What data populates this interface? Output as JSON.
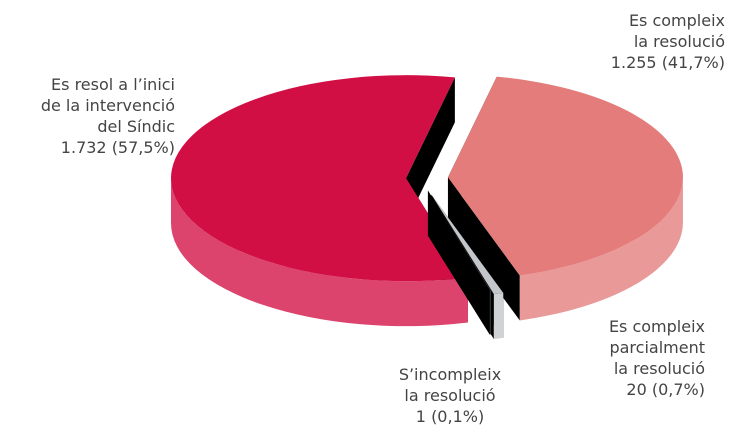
{
  "chart_data": {
    "type": "pie3d",
    "categories": [
      "Es compleix\nla resolució",
      "Es compleix\nparcialment\nla resolució",
      "S’incompleix\nla resolució",
      "Es resol a l’inici\nde la intervenció\ndel Síndic"
    ],
    "values": [
      1255,
      20,
      1,
      1732
    ],
    "value_labels": [
      "1.255 (41,7%)",
      "20 (0,7%)",
      "1 (0,1%)",
      "1.732 (57,5%)"
    ],
    "colors": [
      "#e47c7c",
      "#c3c6ca",
      "#5a5a5c",
      "#d20f45"
    ]
  }
}
